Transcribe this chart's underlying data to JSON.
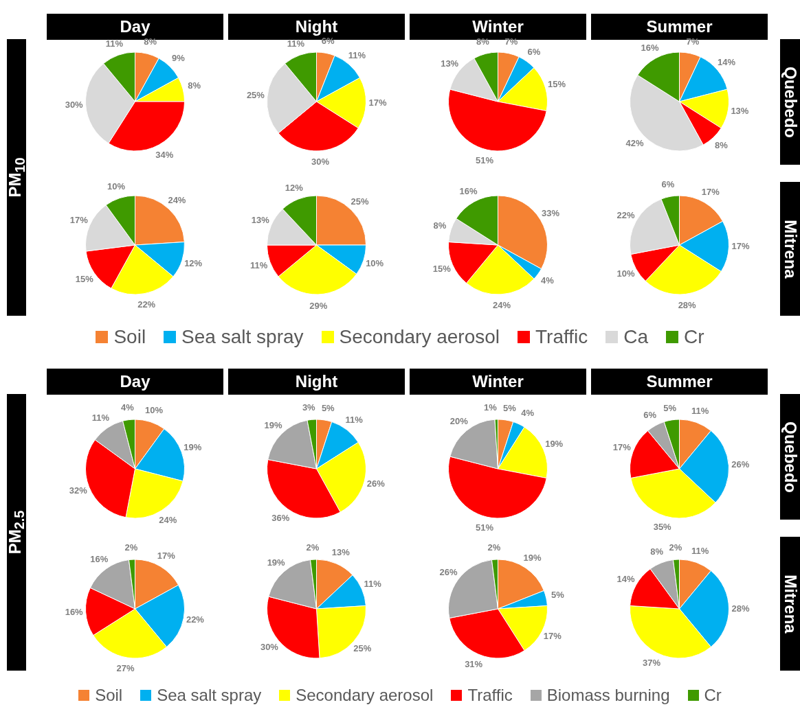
{
  "chart_data": [
    {
      "type": "pie",
      "title": "Day",
      "ylabel": "PM$_{10}$",
      "categories": [
        null,
        null,
        null,
        null,
        null,
        null
      ],
      "values": [
        8,
        9,
        8,
        34,
        30,
        11
      ],
      "value_labels": [
        "8%",
        "9%",
        "8%",
        "34%",
        "30%",
        "11%"
      ],
      "colors": [
        "#f58233",
        "#00b0f0",
        "#ffff00",
        "#ff0000",
        "#d9d9d9",
        "#3f9a00"
      ]
    },
    {
      "type": "pie",
      "title": "Night",
      "categories": [
        null,
        null,
        null,
        null,
        null,
        null
      ],
      "values": [
        6,
        11,
        17,
        30,
        25,
        11
      ],
      "value_labels": [
        "6%",
        "11%",
        "17%",
        "30%",
        "25%",
        "11%"
      ],
      "colors": [
        "#f58233",
        "#00b0f0",
        "#ffff00",
        "#ff0000",
        "#d9d9d9",
        "#3f9a00"
      ]
    },
    {
      "type": "pie",
      "title": "Winter",
      "categories": [
        null,
        null,
        null,
        null,
        null,
        null
      ],
      "values": [
        7,
        6,
        15,
        51,
        13,
        8
      ],
      "value_labels": [
        "7%",
        "6%",
        "15%",
        "51%",
        "13%",
        "8%"
      ],
      "colors": [
        "#f58233",
        "#00b0f0",
        "#ffff00",
        "#ff0000",
        "#d9d9d9",
        "#3f9a00"
      ]
    },
    {
      "type": "pie",
      "title": "Summer",
      "y2label": "Quebedo",
      "categories": [
        null,
        null,
        null,
        null,
        null,
        null
      ],
      "values": [
        7,
        14,
        13,
        8,
        42,
        16
      ],
      "value_labels": [
        "7%",
        "14%",
        "13%",
        "8%",
        "42%",
        "16%"
      ],
      "colors": [
        "#f58233",
        "#00b0f0",
        "#ffff00",
        "#ff0000",
        "#d9d9d9",
        "#3f9a00"
      ]
    },
    {
      "type": "pie",
      "legend": "bottom",
      "categories": [
        "Soil",
        "Sea salt spray",
        "Secondary aerosol",
        "Traffic",
        "Ca",
        "Cr"
      ],
      "values": [
        24,
        12,
        22,
        15,
        17,
        10
      ],
      "value_labels": [
        "24%",
        "12%",
        "22%",
        "15%",
        "17%",
        "10%"
      ],
      "colors": [
        "#f58233",
        "#00b0f0",
        "#ffff00",
        "#ff0000",
        "#d9d9d9",
        "#3f9a00"
      ]
    },
    {
      "type": "pie",
      "categories": [
        null,
        null,
        null,
        null,
        null,
        null
      ],
      "values": [
        25,
        10,
        29,
        11,
        13,
        12
      ],
      "value_labels": [
        "25%",
        "10%",
        "29%",
        "11%",
        "13%",
        "12%"
      ],
      "colors": [
        "#f58233",
        "#00b0f0",
        "#ffff00",
        "#ff0000",
        "#d9d9d9",
        "#3f9a00"
      ]
    },
    {
      "type": "pie",
      "categories": [
        null,
        null,
        null,
        null,
        null,
        null
      ],
      "values": [
        33,
        4,
        24,
        15,
        8,
        16
      ],
      "value_labels": [
        "33%",
        "4%",
        "24%",
        "15%",
        "8%",
        "16%"
      ],
      "colors": [
        "#f58233",
        "#00b0f0",
        "#ffff00",
        "#ff0000",
        "#d9d9d9",
        "#3f9a00"
      ]
    },
    {
      "type": "pie",
      "y2label": "Mitrena",
      "categories": [
        null,
        null,
        null,
        null,
        null,
        null
      ],
      "values": [
        17,
        17,
        28,
        10,
        22,
        6
      ],
      "value_labels": [
        "17%",
        "17%",
        "28%",
        "10%",
        "22%",
        "6%"
      ],
      "colors": [
        "#f58233",
        "#00b0f0",
        "#ffff00",
        "#ff0000",
        "#d9d9d9",
        "#3f9a00"
      ]
    },
    {
      "type": "pie",
      "title": "Day",
      "ylabel": "PM$_{2.5}$",
      "categories": [
        null,
        null,
        null,
        null,
        null,
        null
      ],
      "values": [
        10,
        19,
        24,
        32,
        11,
        4
      ],
      "value_labels": [
        "10%",
        "19%",
        "24%",
        "32%",
        "11%",
        "4%"
      ],
      "colors": [
        "#f58233",
        "#00b0f0",
        "#ffff00",
        "#ff0000",
        "#a6a6a6",
        "#3f9a00"
      ]
    },
    {
      "type": "pie",
      "title": "Night",
      "categories": [
        null,
        null,
        null,
        null,
        null,
        null
      ],
      "values": [
        5,
        11,
        26,
        36,
        19,
        3
      ],
      "value_labels": [
        "5%",
        "11%",
        "26%",
        "36%",
        "19%",
        "3%"
      ],
      "colors": [
        "#f58233",
        "#00b0f0",
        "#ffff00",
        "#ff0000",
        "#a6a6a6",
        "#3f9a00"
      ]
    },
    {
      "type": "pie",
      "title": "Winter",
      "categories": [
        null,
        null,
        null,
        null,
        null,
        null
      ],
      "values": [
        5,
        4,
        19,
        51,
        20,
        1
      ],
      "value_labels": [
        "5%",
        "4%",
        "19%",
        "51%",
        "20%",
        "1%"
      ],
      "colors": [
        "#f58233",
        "#00b0f0",
        "#ffff00",
        "#ff0000",
        "#a6a6a6",
        "#3f9a00"
      ]
    },
    {
      "type": "pie",
      "title": "Summer",
      "y2label": "Quebedo",
      "categories": [
        null,
        null,
        null,
        null,
        null,
        null
      ],
      "values": [
        11,
        26,
        35,
        17,
        6,
        5
      ],
      "value_labels": [
        "11%",
        "26%",
        "35%",
        "17%",
        "6%",
        "5%"
      ],
      "colors": [
        "#f58233",
        "#00b0f0",
        "#ffff00",
        "#ff0000",
        "#a6a6a6",
        "#3f9a00"
      ]
    },
    {
      "type": "pie",
      "legend": "bottom",
      "categories": [
        "Soil",
        "Sea salt spray",
        "Secondary aerosol",
        "Traffic",
        "Biomass burning",
        "Cr"
      ],
      "values": [
        17,
        22,
        27,
        16,
        16,
        2
      ],
      "value_labels": [
        "17%",
        "22%",
        "27%",
        "16%",
        "16%",
        "2%"
      ],
      "colors": [
        "#f58233",
        "#00b0f0",
        "#ffff00",
        "#ff0000",
        "#a6a6a6",
        "#3f9a00"
      ]
    },
    {
      "type": "pie",
      "categories": [
        null,
        null,
        null,
        null,
        null,
        null
      ],
      "values": [
        13,
        11,
        25,
        30,
        19,
        2
      ],
      "value_labels": [
        "13%",
        "11%",
        "25%",
        "30%",
        "19%",
        "2%"
      ],
      "colors": [
        "#f58233",
        "#00b0f0",
        "#ffff00",
        "#ff0000",
        "#a6a6a6",
        "#3f9a00"
      ]
    },
    {
      "type": "pie",
      "categories": [
        null,
        null,
        null,
        null,
        null,
        null
      ],
      "values": [
        19,
        5,
        17,
        31,
        26,
        2
      ],
      "value_labels": [
        "19%",
        "5%",
        "17%",
        "31%",
        "26%",
        "2%"
      ],
      "colors": [
        "#f58233",
        "#00b0f0",
        "#ffff00",
        "#ff0000",
        "#a6a6a6",
        "#3f9a00"
      ]
    },
    {
      "type": "pie",
      "y2label": "Mitrena",
      "categories": [
        null,
        null,
        null,
        null,
        null,
        null
      ],
      "values": [
        11,
        28,
        37,
        14,
        8,
        2
      ],
      "value_labels": [
        "11%",
        "28%",
        "37%",
        "14%",
        "8%",
        "2%"
      ],
      "colors": [
        "#f58233",
        "#00b0f0",
        "#ffff00",
        "#ff0000",
        "#a6a6a6",
        "#3f9a00"
      ]
    }
  ]
}
